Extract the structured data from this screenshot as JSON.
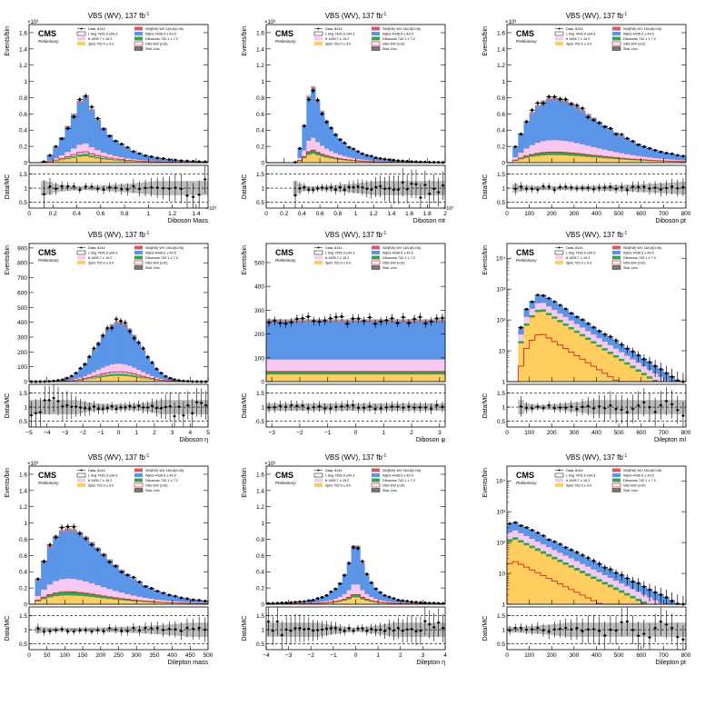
{
  "experiment": "CMS",
  "experiment_sub": "Preliminary",
  "lumi_title": "VBS (WV), 137 fb",
  "lumi_sup": "-1",
  "ratio_ylabel": "Data/MC",
  "ratio_ticks": [
    "0.5",
    "1",
    "1.5"
  ],
  "legend": {
    "left": [
      "Data,  8144",
      "L bkg 7426.9 ±54.3",
      "tt 1495.7 ± 19.2",
      "Zjets  752.0 ± 9.0"
    ],
    "right": [
      "SM(EW) WV  184.6(0.06)",
      "Wjets 4436.5 ± 49.5",
      "Dibosons  742.1 ± 7.2",
      "VBS EW (x10)",
      "Stat. Unc."
    ]
  },
  "colors": {
    "wjets": "#5b95e8",
    "ttbar": "#f6c8f2",
    "diboson": "#34a060",
    "zjets": "#ffce5e",
    "smew": "#d85a66",
    "signal": "#d42828",
    "unc": "#9e9e9e",
    "ratio_band": "#bdbdbd"
  },
  "chart_data": [
    {
      "type": "bar",
      "xlabel": "Diboson Mass",
      "ylabel": "Events/bin",
      "xlim": [
        0,
        1500
      ],
      "ylim": [
        0,
        1700
      ],
      "yticks": [
        {
          "v": 0,
          "l": "0"
        },
        {
          "v": 200,
          "l": "0.2"
        },
        {
          "v": 400,
          "l": "0.4"
        },
        {
          "v": 600,
          "l": "0.6"
        },
        {
          "v": 800,
          "l": "0.8"
        },
        {
          "v": 1000,
          "l": "1"
        },
        {
          "v": 1200,
          "l": "1.2"
        },
        {
          "v": 1400,
          "l": "1.4"
        },
        {
          "v": 1600,
          "l": "1.6"
        }
      ],
      "ymult": "×10³",
      "xmult": "×10³",
      "xticks": [
        {
          "v": 0,
          "l": "0"
        },
        {
          "v": 200,
          "l": "0.2"
        },
        {
          "v": 400,
          "l": "0.4"
        },
        {
          "v": 600,
          "l": "0.6"
        },
        {
          "v": 800,
          "l": "0.8"
        },
        {
          "v": 1000,
          "l": "1"
        },
        {
          "v": 1200,
          "l": "1.2"
        },
        {
          "v": 1400,
          "l": "1.4"
        }
      ]
    },
    {
      "type": "bar",
      "xlabel": "Diboson mt",
      "ylabel": "Events/bin",
      "xlim": [
        0,
        2000
      ],
      "ylim": [
        0,
        1700
      ],
      "yticks": [
        {
          "v": 0,
          "l": "0"
        },
        {
          "v": 200,
          "l": "0.2"
        },
        {
          "v": 400,
          "l": "0.4"
        },
        {
          "v": 600,
          "l": "0.6"
        },
        {
          "v": 800,
          "l": "0.8"
        },
        {
          "v": 1000,
          "l": "1"
        },
        {
          "v": 1200,
          "l": "1.2"
        },
        {
          "v": 1400,
          "l": "1.4"
        },
        {
          "v": 1600,
          "l": "1.6"
        }
      ],
      "ymult": "×10³",
      "xmult": "×10³",
      "xticks": [
        {
          "v": 0,
          "l": "0"
        },
        {
          "v": 200,
          "l": "0.2"
        },
        {
          "v": 400,
          "l": "0.4"
        },
        {
          "v": 600,
          "l": "0.6"
        },
        {
          "v": 800,
          "l": "0.8"
        },
        {
          "v": 1000,
          "l": "1"
        },
        {
          "v": 1200,
          "l": "1.2"
        },
        {
          "v": 1400,
          "l": "1.4"
        },
        {
          "v": 1600,
          "l": "1.6"
        },
        {
          "v": 1800,
          "l": "1.8"
        },
        {
          "v": 2000,
          "l": "2"
        }
      ]
    },
    {
      "type": "bar",
      "xlabel": "Diboson pt",
      "ylabel": "Events/bin",
      "xlim": [
        0,
        800
      ],
      "ylim": [
        0,
        1700
      ],
      "yticks": [
        {
          "v": 0,
          "l": "0"
        },
        {
          "v": 200,
          "l": "0.2"
        },
        {
          "v": 400,
          "l": "0.4"
        },
        {
          "v": 600,
          "l": "0.6"
        },
        {
          "v": 800,
          "l": "0.8"
        },
        {
          "v": 1000,
          "l": "1"
        },
        {
          "v": 1200,
          "l": "1.2"
        },
        {
          "v": 1400,
          "l": "1.4"
        },
        {
          "v": 1600,
          "l": "1.6"
        }
      ],
      "ymult": "×10³",
      "xmult": "",
      "xticks": [
        {
          "v": 0,
          "l": "0"
        },
        {
          "v": 100,
          "l": "100"
        },
        {
          "v": 200,
          "l": "200"
        },
        {
          "v": 300,
          "l": "300"
        },
        {
          "v": 400,
          "l": "400"
        },
        {
          "v": 500,
          "l": "500"
        },
        {
          "v": 600,
          "l": "600"
        },
        {
          "v": 700,
          "l": "700"
        },
        {
          "v": 800,
          "l": "800"
        }
      ]
    },
    {
      "type": "bar",
      "xlabel": "Diboson η",
      "ylabel": "Events/bin",
      "xlim": [
        -5,
        5
      ],
      "ylim": [
        0,
        930
      ],
      "yticks": [
        {
          "v": 0,
          "l": "0"
        },
        {
          "v": 100,
          "l": "100"
        },
        {
          "v": 200,
          "l": "200"
        },
        {
          "v": 300,
          "l": "300"
        },
        {
          "v": 400,
          "l": "400"
        },
        {
          "v": 500,
          "l": "500"
        },
        {
          "v": 600,
          "l": "600"
        },
        {
          "v": 700,
          "l": "700"
        },
        {
          "v": 800,
          "l": "800"
        },
        {
          "v": 900,
          "l": "900"
        }
      ],
      "ymult": "",
      "xmult": "",
      "xticks": [
        {
          "v": -5,
          "l": "−5"
        },
        {
          "v": -4,
          "l": "−4"
        },
        {
          "v": -3,
          "l": "−3"
        },
        {
          "v": -2,
          "l": "−2"
        },
        {
          "v": -1,
          "l": "−1"
        },
        {
          "v": 0,
          "l": "0"
        },
        {
          "v": 1,
          "l": "1"
        },
        {
          "v": 2,
          "l": "2"
        },
        {
          "v": 3,
          "l": "3"
        },
        {
          "v": 4,
          "l": "4"
        },
        {
          "v": 5,
          "l": "5"
        }
      ]
    },
    {
      "type": "bar",
      "xlabel": "Diboson φ",
      "ylabel": "Events/bin",
      "xlim": [
        -3.2,
        3.2
      ],
      "ylim": [
        0,
        580
      ],
      "yticks": [
        {
          "v": 0,
          "l": "0"
        },
        {
          "v": 100,
          "l": "100"
        },
        {
          "v": 200,
          "l": "200"
        },
        {
          "v": 300,
          "l": "300"
        },
        {
          "v": 400,
          "l": "400"
        },
        {
          "v": 500,
          "l": "500"
        }
      ],
      "ymult": "",
      "xmult": "",
      "xticks": [
        {
          "v": -3,
          "l": "−3"
        },
        {
          "v": -2,
          "l": "−2"
        },
        {
          "v": -1,
          "l": "−1"
        },
        {
          "v": 0,
          "l": "0"
        },
        {
          "v": 1,
          "l": "1"
        },
        {
          "v": 2,
          "l": "2"
        },
        {
          "v": 3,
          "l": "3"
        }
      ]
    },
    {
      "type": "bar",
      "log": true,
      "xlabel": "Dilepton ml",
      "ylabel": "Events/bin",
      "xlim": [
        0,
        800
      ],
      "ylim": [
        1,
        30000
      ],
      "yticks": [
        {
          "v": 1,
          "l": "1"
        },
        {
          "v": 10,
          "l": "10"
        },
        {
          "v": 100,
          "l": "10²"
        },
        {
          "v": 1000,
          "l": "10³"
        },
        {
          "v": 10000,
          "l": "10⁴"
        }
      ],
      "ymult": "",
      "xmult": "",
      "xticks": [
        {
          "v": 0,
          "l": "0"
        },
        {
          "v": 100,
          "l": "100"
        },
        {
          "v": 200,
          "l": "200"
        },
        {
          "v": 300,
          "l": "300"
        },
        {
          "v": 400,
          "l": "400"
        },
        {
          "v": 500,
          "l": "500"
        },
        {
          "v": 600,
          "l": "600"
        },
        {
          "v": 700,
          "l": "700"
        },
        {
          "v": 800,
          "l": "800"
        }
      ]
    },
    {
      "type": "bar",
      "xlabel": "Dilepton mass",
      "ylabel": "Events/bin",
      "xlim": [
        0,
        500
      ],
      "ylim": [
        0,
        1700
      ],
      "yticks": [
        {
          "v": 0,
          "l": "0"
        },
        {
          "v": 200,
          "l": "0.2"
        },
        {
          "v": 400,
          "l": "0.4"
        },
        {
          "v": 600,
          "l": "0.6"
        },
        {
          "v": 800,
          "l": "0.8"
        },
        {
          "v": 1000,
          "l": "1"
        },
        {
          "v": 1200,
          "l": "1.2"
        },
        {
          "v": 1400,
          "l": "1.4"
        },
        {
          "v": 1600,
          "l": "1.6"
        }
      ],
      "ymult": "×10³",
      "xmult": "",
      "xticks": [
        {
          "v": 0,
          "l": "0"
        },
        {
          "v": 50,
          "l": "50"
        },
        {
          "v": 100,
          "l": "100"
        },
        {
          "v": 150,
          "l": "150"
        },
        {
          "v": 200,
          "l": "200"
        },
        {
          "v": 250,
          "l": "250"
        },
        {
          "v": 300,
          "l": "300"
        },
        {
          "v": 350,
          "l": "350"
        },
        {
          "v": 400,
          "l": "400"
        },
        {
          "v": 450,
          "l": "450"
        },
        {
          "v": 500,
          "l": "500"
        }
      ]
    },
    {
      "type": "bar",
      "xlabel": "Dilepton η",
      "ylabel": "Events/bin",
      "xlim": [
        -4,
        4
      ],
      "ylim": [
        0,
        1700
      ],
      "yticks": [
        {
          "v": 0,
          "l": "0"
        },
        {
          "v": 200,
          "l": "0.2"
        },
        {
          "v": 400,
          "l": "0.4"
        },
        {
          "v": 600,
          "l": "0.6"
        },
        {
          "v": 800,
          "l": "0.8"
        },
        {
          "v": 1000,
          "l": "1"
        },
        {
          "v": 1200,
          "l": "1.2"
        },
        {
          "v": 1400,
          "l": "1.4"
        },
        {
          "v": 1600,
          "l": "1.6"
        }
      ],
      "ymult": "×10³",
      "xmult": "",
      "xticks": [
        {
          "v": -4,
          "l": "−4"
        },
        {
          "v": -3,
          "l": "−3"
        },
        {
          "v": -2,
          "l": "−2"
        },
        {
          "v": -1,
          "l": "−1"
        },
        {
          "v": 0,
          "l": "0"
        },
        {
          "v": 1,
          "l": "1"
        },
        {
          "v": 2,
          "l": "2"
        },
        {
          "v": 3,
          "l": "3"
        },
        {
          "v": 4,
          "l": "4"
        }
      ]
    },
    {
      "type": "bar",
      "log": true,
      "xlabel": "Dilepton pt",
      "ylabel": "Events/bin",
      "xlim": [
        0,
        800
      ],
      "ylim": [
        1,
        30000
      ],
      "yticks": [
        {
          "v": 1,
          "l": "1"
        },
        {
          "v": 10,
          "l": "10"
        },
        {
          "v": 100,
          "l": "10²"
        },
        {
          "v": 1000,
          "l": "10³"
        },
        {
          "v": 10000,
          "l": "10⁴"
        }
      ],
      "ymult": "",
      "xmult": "",
      "xticks": [
        {
          "v": 0,
          "l": "0"
        },
        {
          "v": 100,
          "l": "100"
        },
        {
          "v": 200,
          "l": "200"
        },
        {
          "v": 300,
          "l": "300"
        },
        {
          "v": 400,
          "l": "400"
        },
        {
          "v": 500,
          "l": "500"
        },
        {
          "v": 600,
          "l": "600"
        },
        {
          "v": 700,
          "l": "700"
        },
        {
          "v": 800,
          "l": "800"
        }
      ]
    }
  ]
}
